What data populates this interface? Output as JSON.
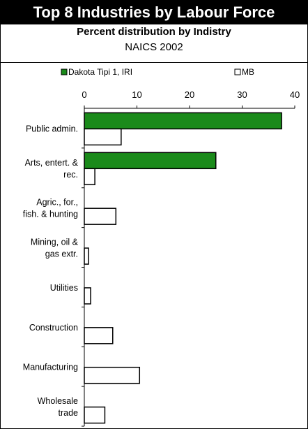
{
  "header": {
    "title": "Top 8 Industries by Labour Force",
    "subtitle": "Percent distribution by Indistry",
    "subtitle2": "NAICS 2002"
  },
  "chart_data": {
    "type": "bar",
    "orientation": "horizontal",
    "categories": [
      [
        "Public admin."
      ],
      [
        "Arts, entert. &",
        "rec."
      ],
      [
        "Agric., for.,",
        "fish. & hunting"
      ],
      [
        "Mining, oil &",
        "gas extr."
      ],
      [
        "Utilities"
      ],
      [
        "Construction"
      ],
      [
        "Manufacturing"
      ],
      [
        "Wholesale",
        "trade"
      ]
    ],
    "series": [
      {
        "name": "Dakota Tipi 1, IRI",
        "color": "#1a8a1a",
        "values": [
          37.5,
          25,
          0,
          0,
          0,
          0,
          0,
          0
        ]
      },
      {
        "name": "MB",
        "color": "#ffffff",
        "values": [
          7,
          2,
          6,
          0.8,
          1.2,
          5.4,
          10.5,
          3.9
        ]
      }
    ],
    "xlim": [
      0,
      40
    ],
    "xticks": [
      0,
      10,
      20,
      30,
      40
    ],
    "grid": false,
    "legend_position": "top"
  }
}
